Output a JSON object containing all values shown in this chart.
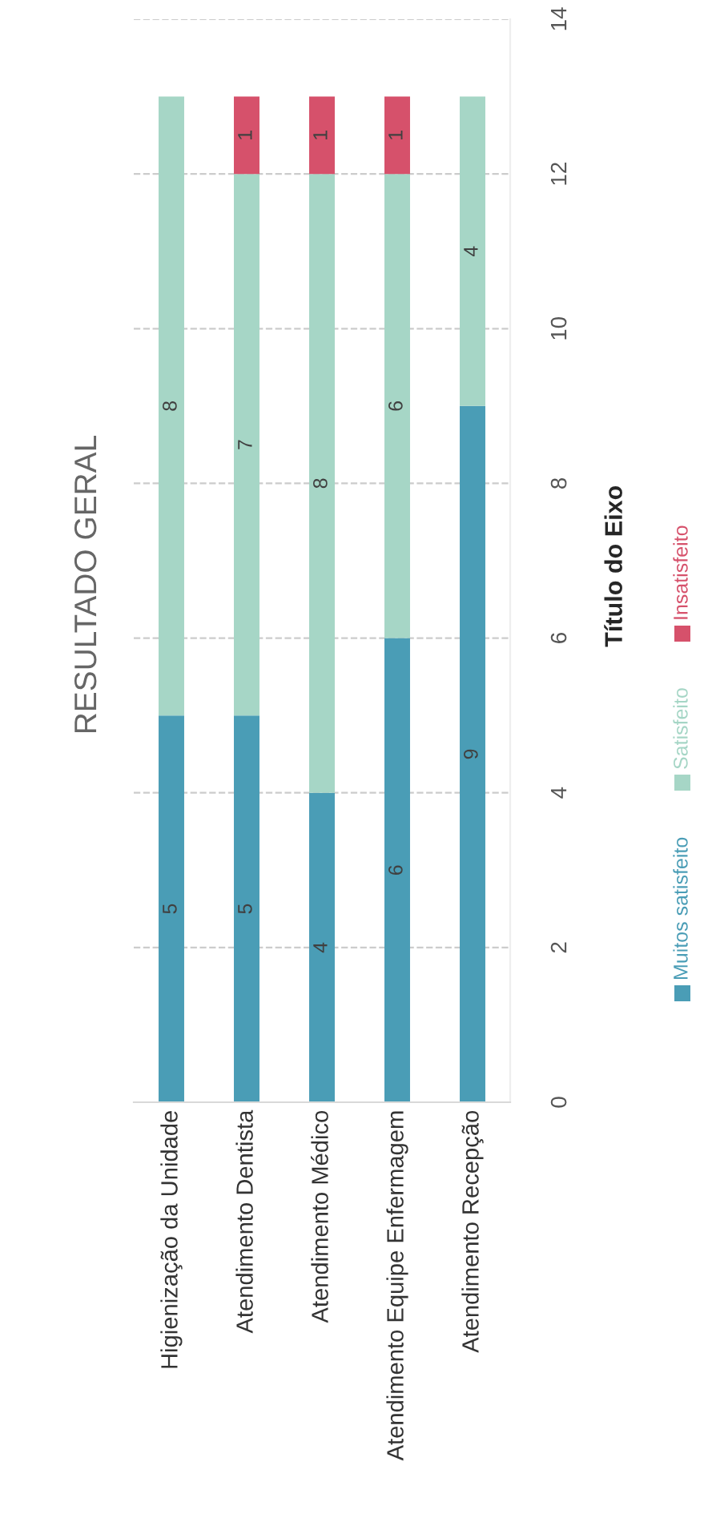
{
  "chart_data": {
    "type": "bar",
    "title": "RESULTADO GERAL",
    "ylabel": "Título do Eixo",
    "categories": [
      "Higienização da Unidade",
      "Atendimento Dentista",
      "Atendimento Médico",
      "Atendimento Equipe Enfermagem",
      "Atendimento Recepção"
    ],
    "series": [
      {
        "name": "Muitos satisfeito",
        "color": "#4a9db6",
        "values": [
          5,
          5,
          4,
          6,
          9
        ]
      },
      {
        "name": "Satisfeito",
        "color": "#a6d6c6",
        "values": [
          8,
          7,
          8,
          6,
          4
        ]
      },
      {
        "name": "Insatisfeito",
        "color": "#d6516b",
        "values": [
          null,
          1,
          1,
          1,
          null
        ]
      }
    ],
    "stacked": true,
    "data_labels": true,
    "ylim": [
      0,
      14
    ],
    "yticks": [
      0,
      2,
      4,
      6,
      8,
      10,
      12,
      14
    ],
    "grid": "y",
    "legend": "right"
  }
}
